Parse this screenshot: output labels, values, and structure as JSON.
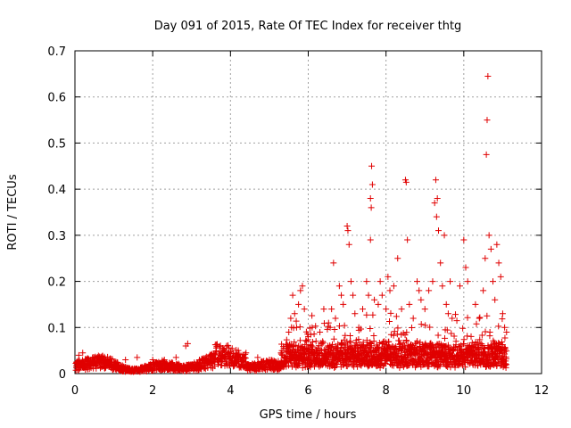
{
  "chart_data": {
    "type": "scatter",
    "title": "Day 091 of 2015, Rate Of TEC Index for receiver thtg",
    "xlabel": "GPS time / hours",
    "ylabel": "ROTI / TECUs",
    "xlim": [
      0,
      12
    ],
    "ylim": [
      0,
      0.7
    ],
    "xticks": [
      0,
      2,
      4,
      6,
      8,
      10,
      12
    ],
    "yticks": [
      0,
      0.1,
      0.2,
      0.3,
      0.4,
      0.5,
      0.6,
      0.7
    ],
    "xtick_labels": [
      "0",
      "2",
      "4",
      "6",
      "8",
      "10",
      "12"
    ],
    "ytick_labels": [
      "0",
      "0.1",
      "0.2",
      "0.3",
      "0.4",
      "0.5",
      "0.6",
      "0.7"
    ],
    "grid": true,
    "marker": "+",
    "color": "#e00000",
    "series": [
      {
        "name": "ROTI",
        "points": [
          [
            0.1,
            0.04
          ],
          [
            0.2,
            0.045
          ],
          [
            0.3,
            0.02
          ],
          [
            0.5,
            0.035
          ],
          [
            0.8,
            0.03
          ],
          [
            1.0,
            0.025
          ],
          [
            1.3,
            0.03
          ],
          [
            1.6,
            0.035
          ],
          [
            2.0,
            0.03
          ],
          [
            2.3,
            0.03
          ],
          [
            2.6,
            0.035
          ],
          [
            2.85,
            0.06
          ],
          [
            2.9,
            0.065
          ],
          [
            3.2,
            0.03
          ],
          [
            3.5,
            0.04
          ],
          [
            3.8,
            0.055
          ],
          [
            3.9,
            0.06
          ],
          [
            4.2,
            0.05
          ],
          [
            4.4,
            0.045
          ],
          [
            4.7,
            0.035
          ],
          [
            5.0,
            0.03
          ],
          [
            5.3,
            0.045
          ],
          [
            5.5,
            0.09
          ],
          [
            5.55,
            0.12
          ],
          [
            5.6,
            0.17
          ],
          [
            5.65,
            0.13
          ],
          [
            5.7,
            0.1
          ],
          [
            5.75,
            0.15
          ],
          [
            5.8,
            0.18
          ],
          [
            5.85,
            0.19
          ],
          [
            5.9,
            0.14
          ],
          [
            6.0,
            0.08
          ],
          [
            6.1,
            0.1
          ],
          [
            6.2,
            0.07
          ],
          [
            6.3,
            0.09
          ],
          [
            6.4,
            0.14
          ],
          [
            6.5,
            0.06
          ],
          [
            6.6,
            0.14
          ],
          [
            6.65,
            0.24
          ],
          [
            6.7,
            0.12
          ],
          [
            6.8,
            0.19
          ],
          [
            6.85,
            0.17
          ],
          [
            6.9,
            0.15
          ],
          [
            7.0,
            0.32
          ],
          [
            7.02,
            0.31
          ],
          [
            7.05,
            0.28
          ],
          [
            7.1,
            0.2
          ],
          [
            7.15,
            0.17
          ],
          [
            7.2,
            0.13
          ],
          [
            7.3,
            0.1
          ],
          [
            7.4,
            0.14
          ],
          [
            7.5,
            0.2
          ],
          [
            7.55,
            0.17
          ],
          [
            7.6,
            0.38
          ],
          [
            7.62,
            0.36
          ],
          [
            7.63,
            0.45
          ],
          [
            7.65,
            0.41
          ],
          [
            7.6,
            0.29
          ],
          [
            7.7,
            0.16
          ],
          [
            7.8,
            0.15
          ],
          [
            7.85,
            0.2
          ],
          [
            7.9,
            0.17
          ],
          [
            8.0,
            0.14
          ],
          [
            8.05,
            0.21
          ],
          [
            8.1,
            0.18
          ],
          [
            8.2,
            0.19
          ],
          [
            8.3,
            0.25
          ],
          [
            8.4,
            0.14
          ],
          [
            8.5,
            0.42
          ],
          [
            8.52,
            0.415
          ],
          [
            8.55,
            0.29
          ],
          [
            8.6,
            0.15
          ],
          [
            8.7,
            0.12
          ],
          [
            8.8,
            0.2
          ],
          [
            8.85,
            0.18
          ],
          [
            8.9,
            0.16
          ],
          [
            9.0,
            0.14
          ],
          [
            9.1,
            0.18
          ],
          [
            9.2,
            0.2
          ],
          [
            9.25,
            0.37
          ],
          [
            9.28,
            0.42
          ],
          [
            9.3,
            0.34
          ],
          [
            9.32,
            0.38
          ],
          [
            9.35,
            0.31
          ],
          [
            9.4,
            0.24
          ],
          [
            9.45,
            0.19
          ],
          [
            9.5,
            0.3
          ],
          [
            9.55,
            0.15
          ],
          [
            9.6,
            0.13
          ],
          [
            9.65,
            0.2
          ],
          [
            9.7,
            0.12
          ],
          [
            9.8,
            0.07
          ],
          [
            9.9,
            0.19
          ],
          [
            10.0,
            0.29
          ],
          [
            10.05,
            0.23
          ],
          [
            10.1,
            0.2
          ],
          [
            10.3,
            0.15
          ],
          [
            10.4,
            0.12
          ],
          [
            10.5,
            0.18
          ],
          [
            10.55,
            0.25
          ],
          [
            10.58,
            0.475
          ],
          [
            10.6,
            0.55
          ],
          [
            10.62,
            0.645
          ],
          [
            10.65,
            0.3
          ],
          [
            10.7,
            0.27
          ],
          [
            10.75,
            0.2
          ],
          [
            10.8,
            0.16
          ],
          [
            10.85,
            0.28
          ],
          [
            10.9,
            0.24
          ],
          [
            10.95,
            0.21
          ],
          [
            11.0,
            0.13
          ],
          [
            11.05,
            0.1
          ],
          [
            11.1,
            0.09
          ]
        ]
      }
    ]
  }
}
